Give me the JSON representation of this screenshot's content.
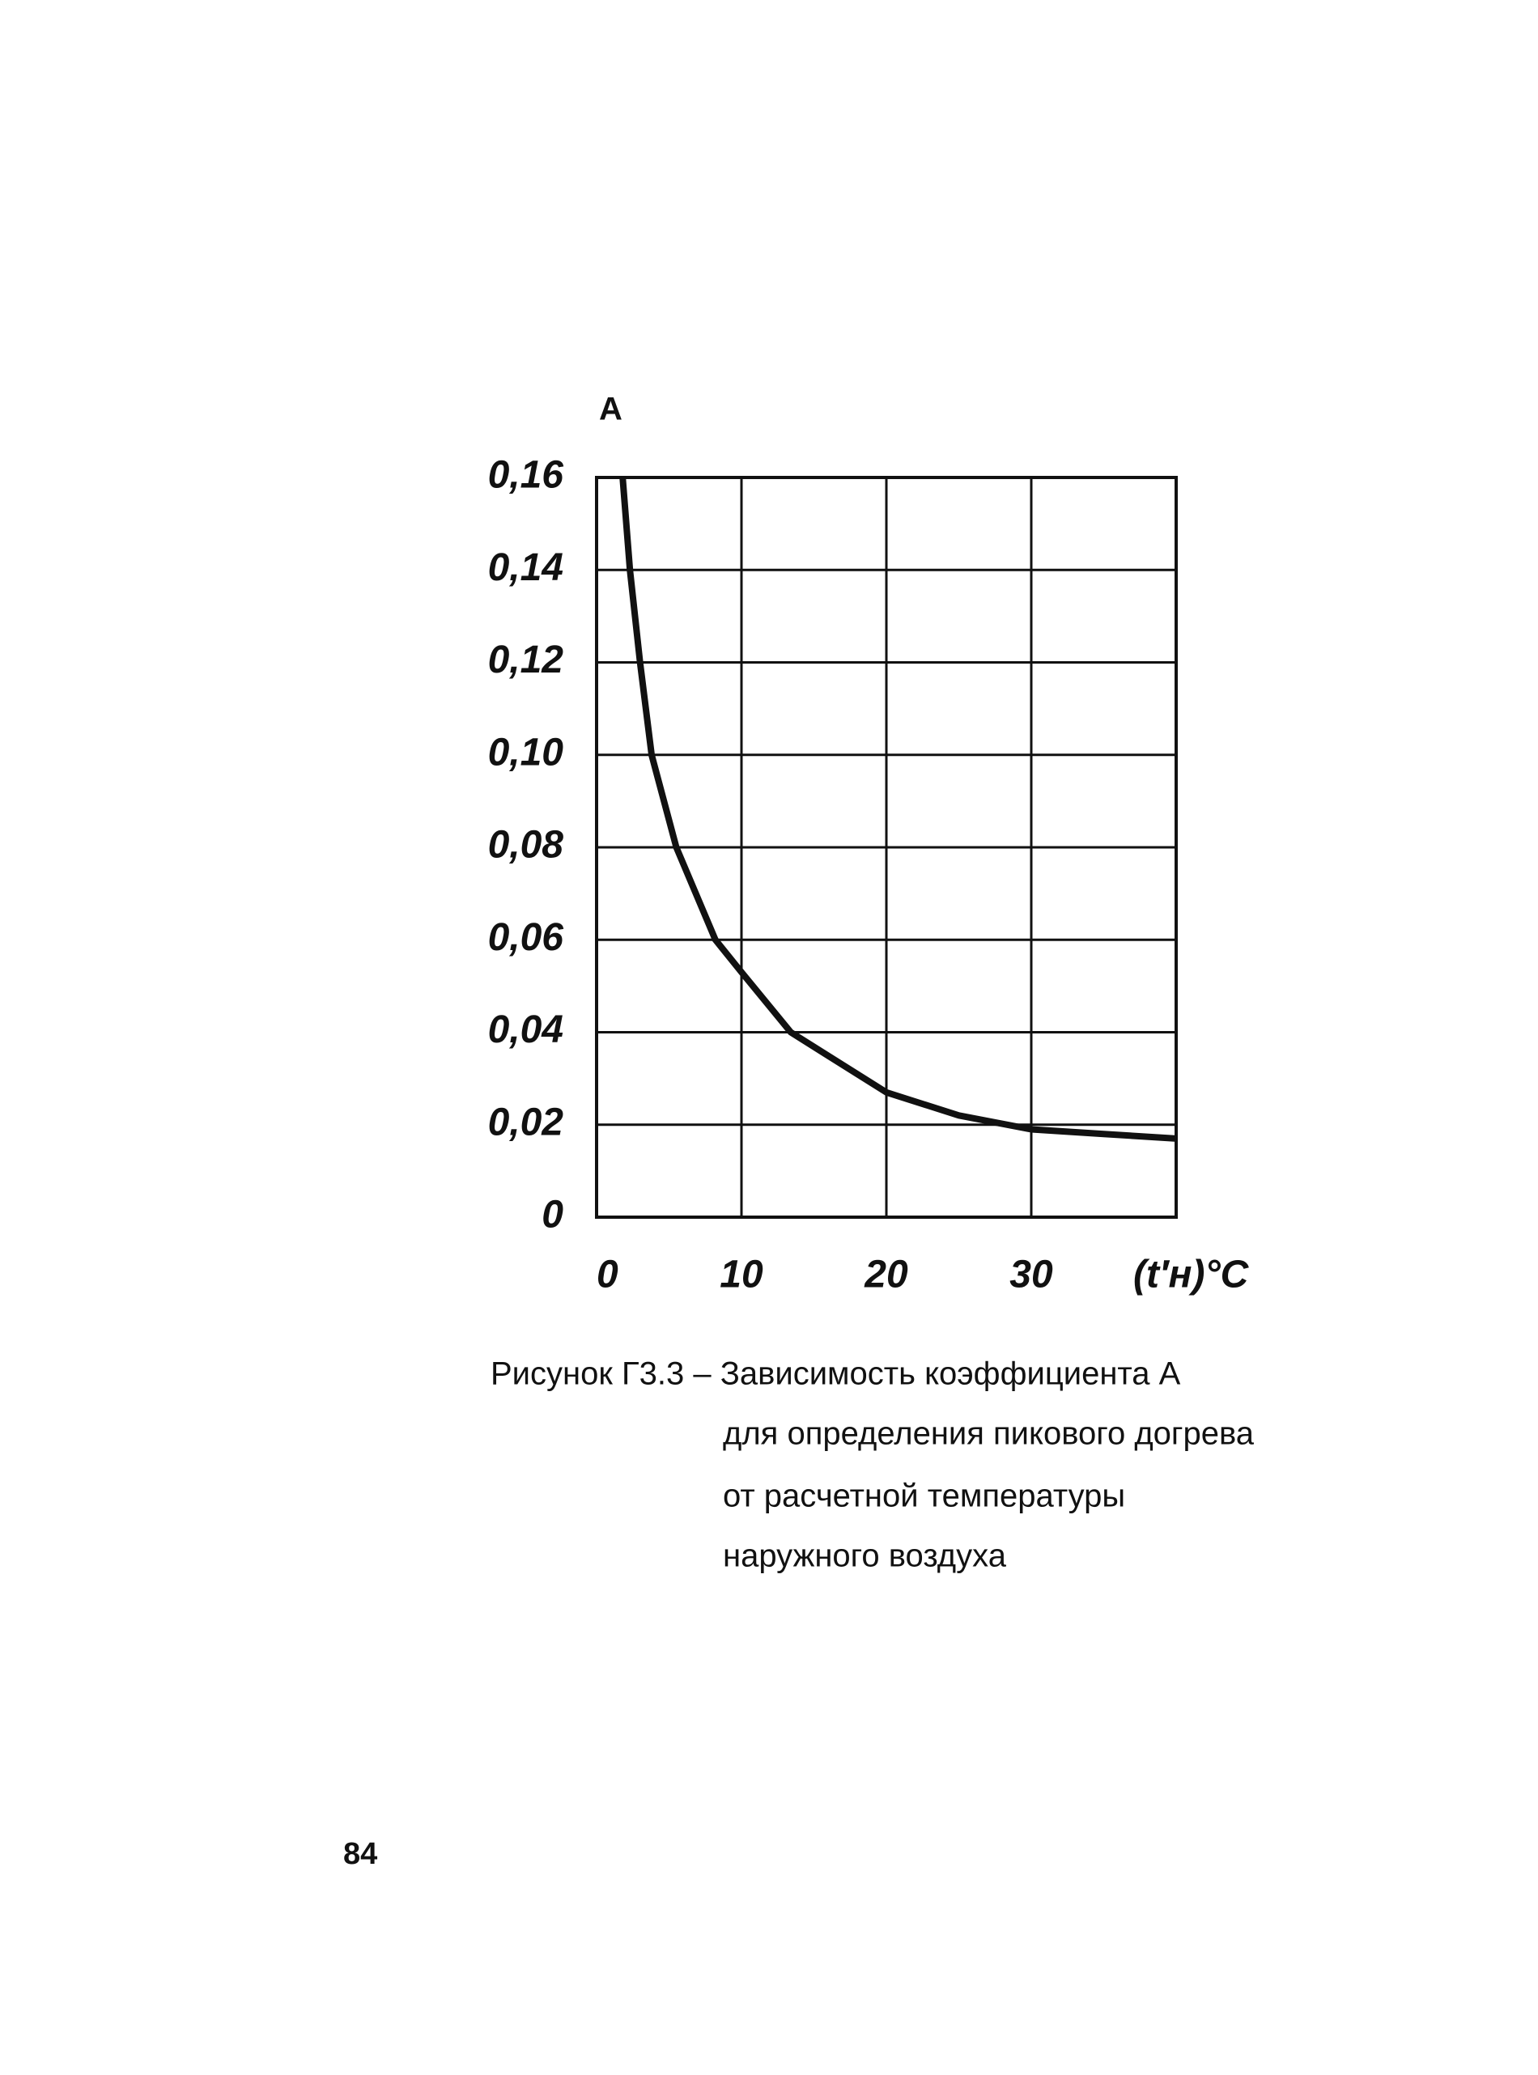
{
  "chart_data": {
    "type": "line",
    "y_label": "A",
    "x_label": "(t′н)°C",
    "x": [
      1.8,
      2.3,
      3.0,
      3.8,
      5.5,
      8.2,
      10,
      13.4,
      20,
      25,
      30,
      35,
      40
    ],
    "values": [
      0.16,
      0.14,
      0.12,
      0.1,
      0.08,
      0.06,
      0.053,
      0.04,
      0.027,
      0.022,
      0.019,
      0.018,
      0.017
    ],
    "color": "#111111",
    "xlim": [
      0,
      40
    ],
    "xticks": [
      0,
      10,
      20,
      30
    ],
    "ylim": [
      0,
      0.16
    ],
    "yticks": [
      0,
      {
        "value": 0.02,
        "label": "0,02"
      },
      {
        "value": 0.04,
        "label": "0,04"
      },
      {
        "value": 0.06,
        "label": "0,06"
      },
      {
        "value": 0.08,
        "label": "0,08"
      },
      {
        "value": 0.1,
        "label": "0,10"
      },
      {
        "value": 0.12,
        "label": "0,12"
      },
      {
        "value": 0.14,
        "label": "0,14"
      },
      {
        "value": 0.16,
        "label": "0,16"
      }
    ],
    "grid": true
  },
  "caption": [
    "Рисунок Г3.3 – Зависимость коэффициента  А",
    "для определения пикового догрева",
    "от расчетной температуры",
    "наружного воздуха"
  ],
  "page_number": "84"
}
